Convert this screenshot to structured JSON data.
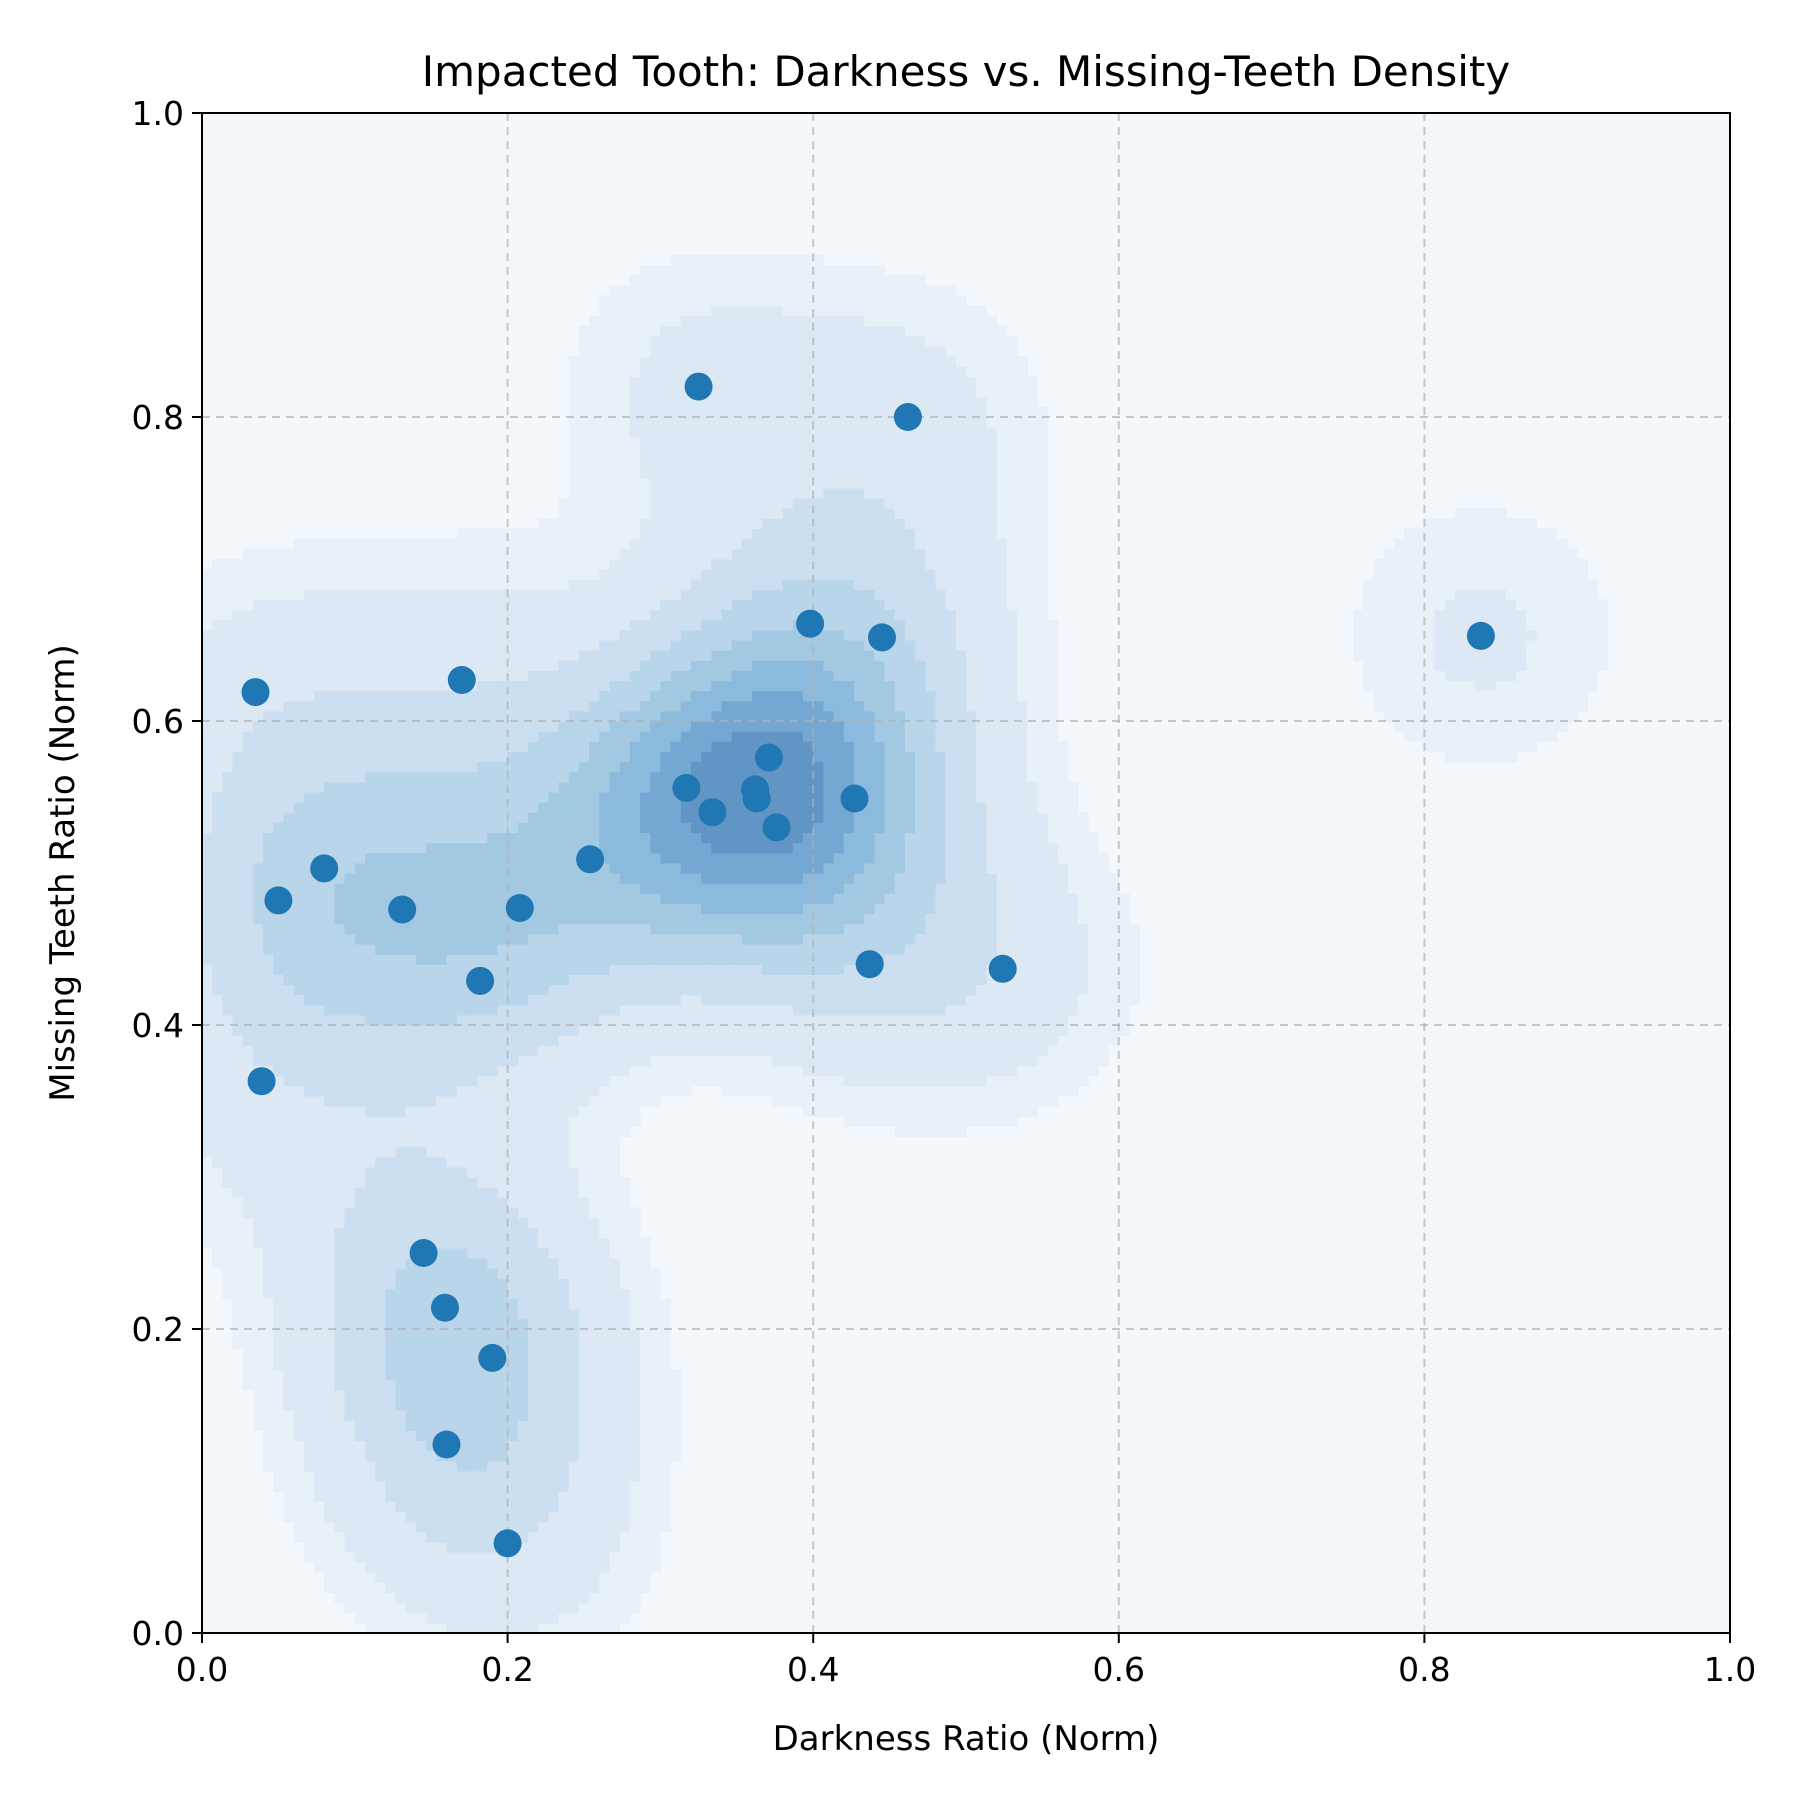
{
  "chart_data": {
    "type": "scatter",
    "title": "Impacted Tooth: Darkness vs. Missing-Teeth Density",
    "xlabel": "Darkness Ratio (Norm)",
    "ylabel": "Missing Teeth Ratio (Norm)",
    "xlim": [
      0.0,
      1.0
    ],
    "ylim": [
      0.0,
      1.0
    ],
    "xticks": [
      "0.0",
      "0.2",
      "0.4",
      "0.6",
      "0.8",
      "1.0"
    ],
    "yticks": [
      "0.0",
      "0.2",
      "0.4",
      "0.6",
      "0.8",
      "1.0"
    ],
    "grid": true,
    "grid_style": "dashed",
    "legend": "none",
    "overlay": "kernel density contours (filled, Blues)",
    "colors": {
      "points": "#1f77b4",
      "plot_background": "#f3f8fc",
      "density_levels": [
        "#e8f0f8",
        "#dce8f3",
        "#cbdff0",
        "#b8d5e9",
        "#a3c9e2",
        "#8cbadc",
        "#74a8d2",
        "#6195c5"
      ]
    },
    "points": [
      {
        "x": 0.325,
        "y": 0.82
      },
      {
        "x": 0.462,
        "y": 0.8
      },
      {
        "x": 0.398,
        "y": 0.664
      },
      {
        "x": 0.445,
        "y": 0.655
      },
      {
        "x": 0.837,
        "y": 0.656
      },
      {
        "x": 0.17,
        "y": 0.627
      },
      {
        "x": 0.035,
        "y": 0.619
      },
      {
        "x": 0.371,
        "y": 0.576
      },
      {
        "x": 0.317,
        "y": 0.556
      },
      {
        "x": 0.362,
        "y": 0.555
      },
      {
        "x": 0.363,
        "y": 0.549
      },
      {
        "x": 0.427,
        "y": 0.549
      },
      {
        "x": 0.334,
        "y": 0.54
      },
      {
        "x": 0.376,
        "y": 0.53
      },
      {
        "x": 0.254,
        "y": 0.509
      },
      {
        "x": 0.08,
        "y": 0.503
      },
      {
        "x": 0.05,
        "y": 0.482
      },
      {
        "x": 0.131,
        "y": 0.476
      },
      {
        "x": 0.208,
        "y": 0.477
      },
      {
        "x": 0.437,
        "y": 0.44
      },
      {
        "x": 0.524,
        "y": 0.437
      },
      {
        "x": 0.182,
        "y": 0.429
      },
      {
        "x": 0.039,
        "y": 0.363
      },
      {
        "x": 0.145,
        "y": 0.25
      },
      {
        "x": 0.159,
        "y": 0.214
      },
      {
        "x": 0.19,
        "y": 0.181
      },
      {
        "x": 0.16,
        "y": 0.124
      },
      {
        "x": 0.2,
        "y": 0.059
      }
    ]
  }
}
